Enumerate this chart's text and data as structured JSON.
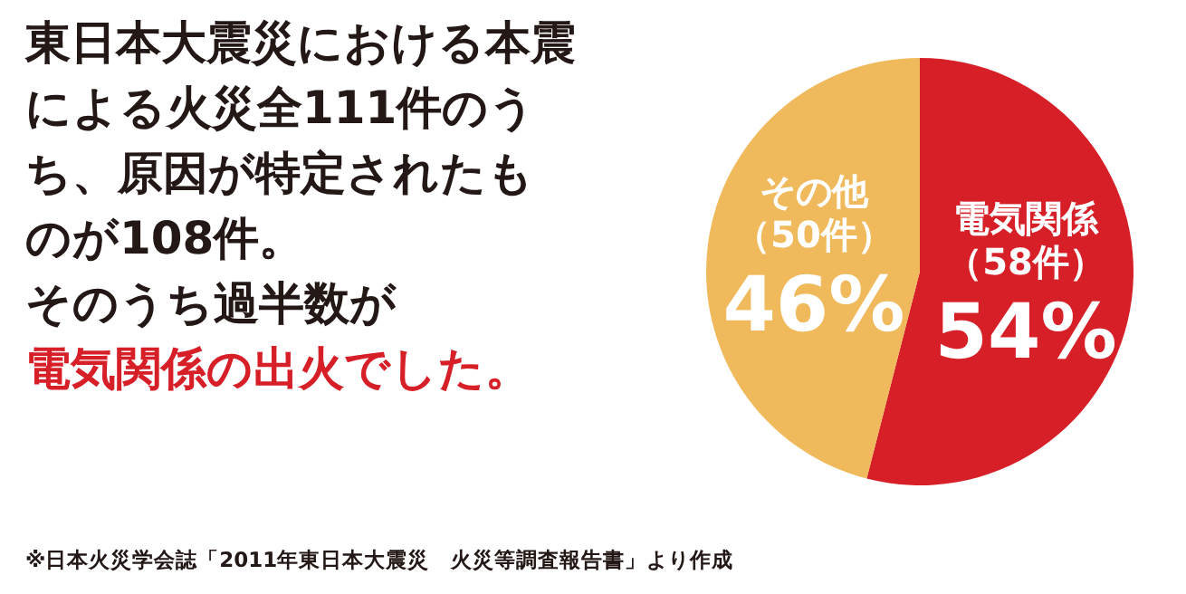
{
  "chart_data": {
    "type": "pie",
    "title": "東日本大震災における本震による火災全111件のうち、原因が特定されたものが108件。",
    "subtitle": "そのうち過半数が",
    "categories": [
      "電気関係（58件）",
      "その他（50件）"
    ],
    "values": [
      54,
      46
    ],
    "value_labels": [
      "54%",
      "46%"
    ],
    "colors": [
      "#d71f28",
      "#f0b95c"
    ],
    "annotations": [
      "電気関係の出火でした。",
      "※日本火災学会誌「2011年東日本大震災　火災等調査報告書」より作成"
    ]
  }
}
